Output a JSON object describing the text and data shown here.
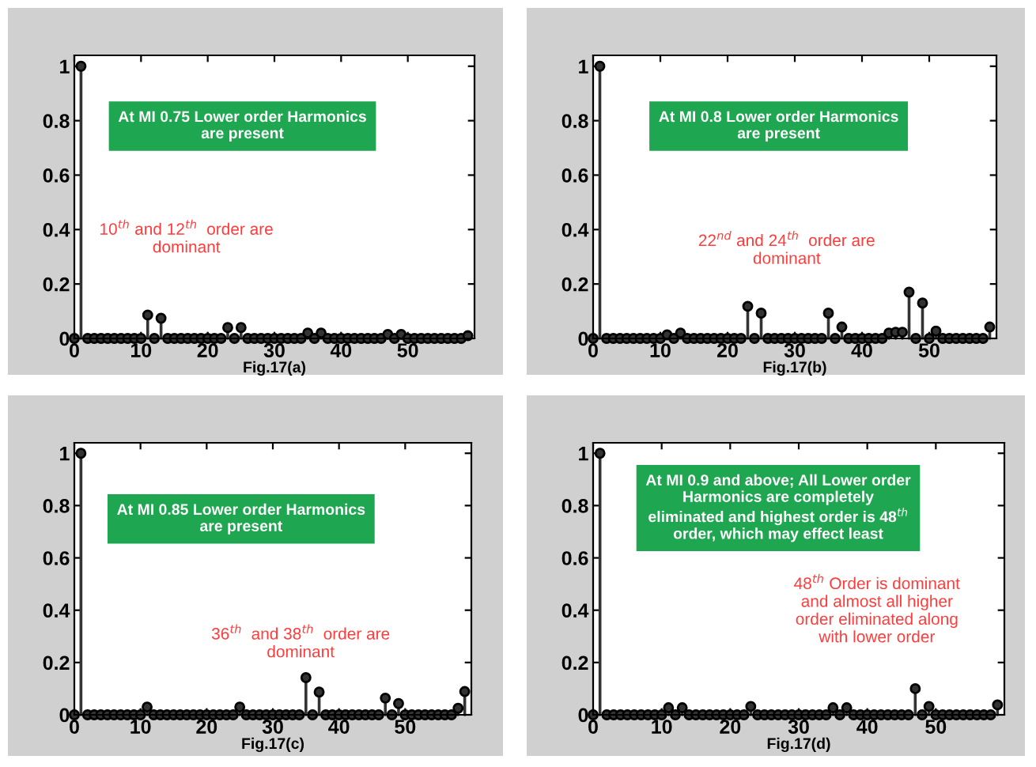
{
  "chart_data": [
    {
      "type": "lollipop",
      "xlabel": "Fig.17(a)",
      "annotations": [
        "At MI 0.75 Lower order Harmonics\nare present",
        "10$^{th}$ and 12$^{th}$  order are\ndominant"
      ],
      "x": [
        0,
        1,
        2,
        3,
        4,
        5,
        6,
        7,
        8,
        9,
        10,
        11,
        12,
        13,
        14,
        15,
        16,
        17,
        18,
        19,
        20,
        21,
        22,
        23,
        24,
        25,
        26,
        27,
        28,
        29,
        30,
        31,
        32,
        33,
        34,
        35,
        36,
        37,
        38,
        39,
        40,
        41,
        42,
        43,
        44,
        45,
        46,
        47,
        48,
        49,
        50,
        51,
        52,
        53,
        54,
        55,
        56,
        57,
        58,
        59
      ],
      "series": [
        {
          "color": "#333333",
          "values": [
            0,
            1,
            0,
            0,
            0,
            0,
            0,
            0,
            0,
            0,
            0,
            0.086,
            0,
            0.074,
            0,
            0,
            0,
            0,
            0,
            0,
            0,
            0,
            0,
            0.04,
            0,
            0.04,
            0,
            0,
            0,
            0,
            0,
            0,
            0,
            0,
            0,
            0.02,
            0,
            0.02,
            0,
            0,
            0,
            0,
            0,
            0,
            0,
            0,
            0,
            0.015,
            0,
            0.015,
            0,
            0,
            0,
            0,
            0,
            0,
            0,
            0,
            0,
            0.01
          ]
        }
      ],
      "xlim": [
        0,
        60
      ],
      "ylim": [
        0,
        1.04
      ],
      "xticks": [
        0,
        10,
        20,
        30,
        40,
        50
      ],
      "yticks": [
        0,
        0.2,
        0.4,
        0.6,
        0.8,
        1
      ],
      "marker": "circle",
      "grid": false
    },
    {
      "type": "lollipop",
      "xlabel": "Fig.17(b)",
      "annotations": [
        "At MI 0.8 Lower order Harmonics\nare present",
        "22$^{nd}$ and 24$^{th}$  order are\ndominant"
      ],
      "x": [
        0,
        1,
        2,
        3,
        4,
        5,
        6,
        7,
        8,
        9,
        10,
        11,
        12,
        13,
        14,
        15,
        16,
        17,
        18,
        19,
        20,
        21,
        22,
        23,
        24,
        25,
        26,
        27,
        28,
        29,
        30,
        31,
        32,
        33,
        34,
        35,
        36,
        37,
        38,
        39,
        40,
        41,
        42,
        43,
        44,
        45,
        46,
        47,
        48,
        49,
        50,
        51,
        52,
        53,
        54,
        55,
        56,
        57,
        58,
        59
      ],
      "series": [
        {
          "color": "#333333",
          "values": [
            0,
            1,
            0,
            0,
            0,
            0,
            0,
            0,
            0,
            0,
            0,
            0.013,
            0,
            0.02,
            0,
            0,
            0,
            0,
            0,
            0,
            0,
            0,
            0,
            0.118,
            0,
            0.093,
            0,
            0,
            0,
            0,
            0,
            0,
            0,
            0,
            0,
            0.093,
            0,
            0.042,
            0,
            0,
            0,
            0,
            0,
            0,
            0.02,
            0.023,
            0.023,
            0.17,
            0,
            0.13,
            0,
            0.027,
            0,
            0,
            0,
            0,
            0,
            0,
            0,
            0.042
          ]
        }
      ],
      "xlim": [
        0,
        60
      ],
      "ylim": [
        0,
        1.04
      ],
      "xticks": [
        0,
        10,
        20,
        30,
        40,
        50
      ],
      "yticks": [
        0,
        0.2,
        0.4,
        0.6,
        0.8,
        1
      ],
      "marker": "circle",
      "grid": false
    },
    {
      "type": "lollipop",
      "xlabel": "Fig.17(c)",
      "annotations": [
        "At MI 0.85 Lower order Harmonics\nare present",
        "36$^{th}$  and 38$^{th}$  order are\ndominant"
      ],
      "x": [
        0,
        1,
        2,
        3,
        4,
        5,
        6,
        7,
        8,
        9,
        10,
        11,
        12,
        13,
        14,
        15,
        16,
        17,
        18,
        19,
        20,
        21,
        22,
        23,
        24,
        25,
        26,
        27,
        28,
        29,
        30,
        31,
        32,
        33,
        34,
        35,
        36,
        37,
        38,
        39,
        40,
        41,
        42,
        43,
        44,
        45,
        46,
        47,
        48,
        49,
        50,
        51,
        52,
        53,
        54,
        55,
        56,
        57,
        58,
        59
      ],
      "series": [
        {
          "color": "#333333",
          "values": [
            0,
            1,
            0,
            0,
            0,
            0,
            0,
            0,
            0,
            0,
            0,
            0.03,
            0,
            0,
            0,
            0,
            0,
            0,
            0,
            0,
            0,
            0,
            0,
            0,
            0,
            0.03,
            0,
            0,
            0,
            0,
            0,
            0,
            0,
            0,
            0,
            0.142,
            0,
            0.087,
            0,
            0,
            0,
            0,
            0,
            0,
            0,
            0,
            0,
            0.064,
            0,
            0.043,
            0,
            0,
            0,
            0,
            0,
            0,
            0,
            0,
            0.025,
            0.089
          ]
        }
      ],
      "xlim": [
        0,
        60
      ],
      "ylim": [
        0,
        1.04
      ],
      "xticks": [
        0,
        10,
        20,
        30,
        40,
        50
      ],
      "yticks": [
        0,
        0.2,
        0.4,
        0.6,
        0.8,
        1
      ],
      "marker": "circle",
      "grid": false
    },
    {
      "type": "lollipop",
      "xlabel": "Fig.17(d)",
      "annotations": [
        "At MI 0.9 and above; All Lower order\nHarmonics are completely\neliminated and highest order is 48$^{th}$\norder, which may effect least",
        "48$^{th}$ Order is dominant\nand almost all higher\norder eliminated along\nwith lower order"
      ],
      "x": [
        0,
        1,
        2,
        3,
        4,
        5,
        6,
        7,
        8,
        9,
        10,
        11,
        12,
        13,
        14,
        15,
        16,
        17,
        18,
        19,
        20,
        21,
        22,
        23,
        24,
        25,
        26,
        27,
        28,
        29,
        30,
        31,
        32,
        33,
        34,
        35,
        36,
        37,
        38,
        39,
        40,
        41,
        42,
        43,
        44,
        45,
        46,
        47,
        48,
        49,
        50,
        51,
        52,
        53,
        54,
        55,
        56,
        57,
        58,
        59
      ],
      "series": [
        {
          "color": "#333333",
          "values": [
            0,
            1,
            0,
            0,
            0,
            0,
            0,
            0,
            0,
            0,
            0,
            0.027,
            0,
            0.027,
            0,
            0,
            0,
            0,
            0,
            0,
            0,
            0,
            0,
            0.032,
            0,
            0,
            0,
            0,
            0,
            0,
            0,
            0,
            0,
            0,
            0,
            0.027,
            0,
            0.027,
            0,
            0,
            0,
            0,
            0,
            0,
            0,
            0,
            0,
            0.1,
            0,
            0.032,
            0,
            0,
            0,
            0,
            0,
            0,
            0,
            0,
            0,
            0.038
          ]
        }
      ],
      "xlim": [
        0,
        60
      ],
      "ylim": [
        0,
        1.04
      ],
      "xticks": [
        0,
        10,
        20,
        30,
        40,
        50
      ],
      "yticks": [
        0,
        0.2,
        0.4,
        0.6,
        0.8,
        1
      ],
      "marker": "circle",
      "grid": false
    }
  ]
}
